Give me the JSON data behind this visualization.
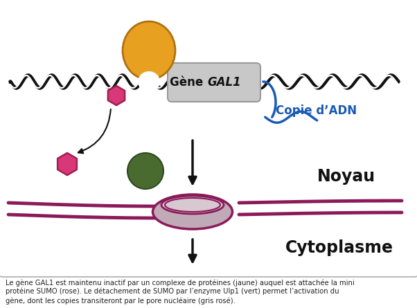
{
  "caption": "Le gène GAL1 est maintenu inactif par un complexe de protéines (jaune) auquel est attachée la mini\nprotéine SUMO (rose). Le détachement de SUMO par l’enzyme Ulp1 (vert) permet l’activation du\ngène, dont les copies transiteront par le pore nucléaire (gris rosé).",
  "gene_label": "Gène ",
  "gene_italic": "GAL1",
  "copie_label": "Copie d’ADN",
  "noyau_label": "Noyau",
  "cytoplasme_label": "Cytoplasme",
  "bg_color": "#ffffff",
  "box_border_color": "#bbbbbb",
  "dna_color": "#111111",
  "gene_box_color": "#c8c8c8",
  "gene_box_edge": "#999999",
  "protein_color": "#e8a020",
  "protein_edge": "#b07010",
  "sumo_color": "#d83878",
  "sumo_edge": "#a02050",
  "ulp1_color": "#4a6b30",
  "ulp1_edge": "#2a4b20",
  "pore_body_color": "#c0aab8",
  "pore_top_color": "#d8c8d0",
  "pore_rim_color": "#8b1a5a",
  "membrane_color": "#8b1a5a",
  "copie_color": "#1a5ab5",
  "copie_label_color": "#1a5ab5",
  "noyau_color": "#111111",
  "cytoplasme_color": "#111111",
  "arrow_color": "#111111"
}
